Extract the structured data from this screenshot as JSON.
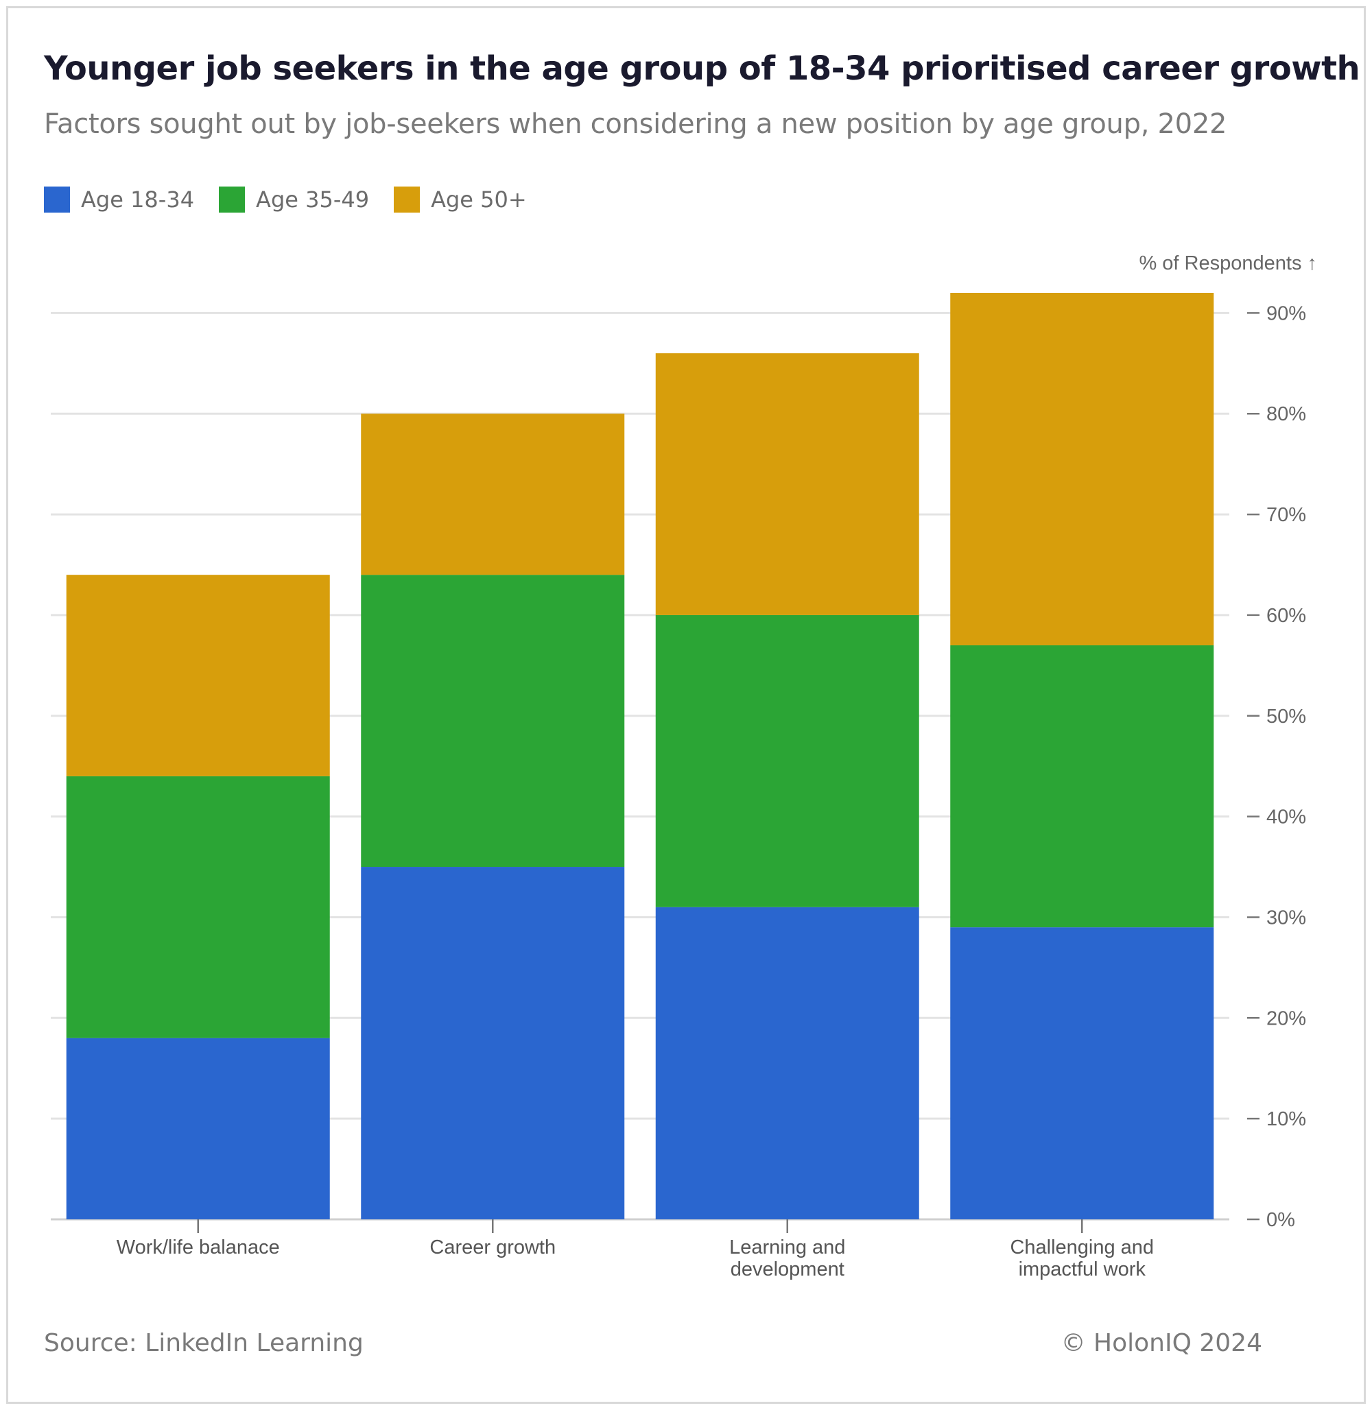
{
  "title": "Younger job seekers in the age group of 18-34 prioritised career growth",
  "subtitle": "Factors sought out by job-seekers when considering a new position by age group, 2022",
  "legend": [
    {
      "label": "Age 18-34",
      "color": "#2a66cf"
    },
    {
      "label": "Age 35-49",
      "color": "#2ba535"
    },
    {
      "label": "Age 50+",
      "color": "#d79e0c"
    }
  ],
  "footer": {
    "source": "Source: LinkedIn Learning",
    "copyright": "© HolonIQ 2024"
  },
  "chart_data": {
    "type": "bar",
    "stacked": true,
    "categories": [
      [
        "Work/life balanace"
      ],
      [
        "Career growth"
      ],
      [
        "Learning and",
        "development"
      ],
      [
        "Challenging and",
        "impactful work"
      ]
    ],
    "series": [
      {
        "name": "Age 18-34",
        "color": "#2a66cf",
        "values": [
          18,
          35,
          31,
          29
        ]
      },
      {
        "name": "Age 35-49",
        "color": "#2ba535",
        "values": [
          26,
          29,
          29,
          28
        ]
      },
      {
        "name": "Age 50+",
        "color": "#d79e0c",
        "values": [
          20,
          16,
          26,
          35
        ]
      }
    ],
    "ylabel": "% of Respondents ↑",
    "ylim": [
      0,
      92
    ],
    "yticks": [
      0,
      10,
      20,
      30,
      40,
      50,
      60,
      70,
      80,
      90
    ],
    "tick_suffix": "%",
    "y_axis_side": "right",
    "grid": true,
    "legend_position": "top-left"
  }
}
